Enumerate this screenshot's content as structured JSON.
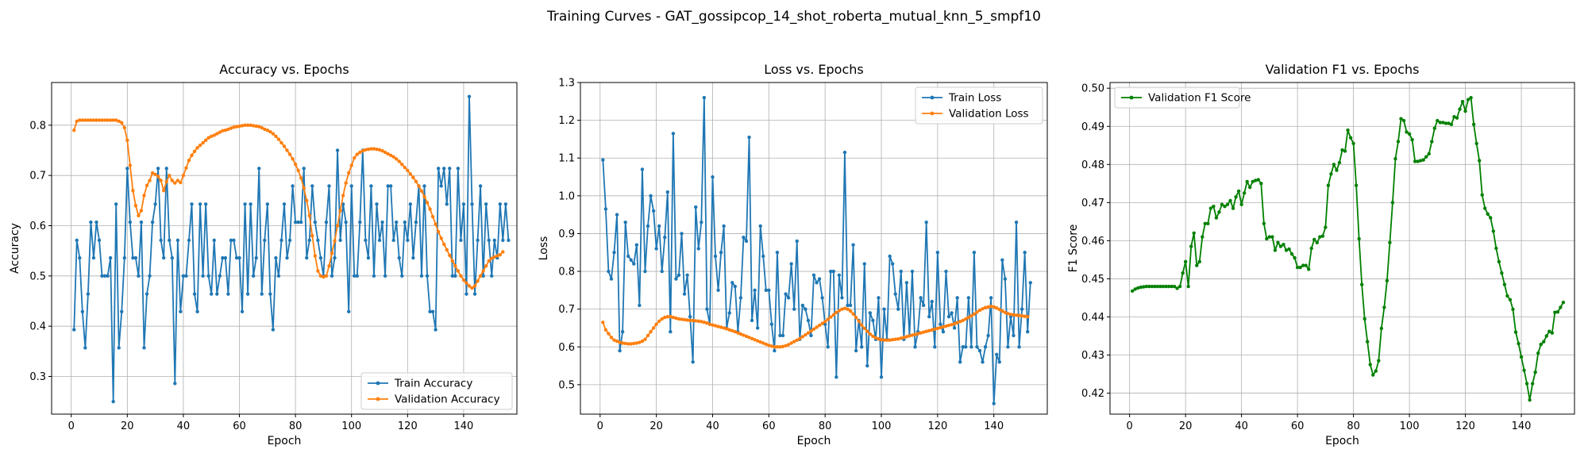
{
  "figure": {
    "suptitle": "Training Curves - GAT_gossipcop_14_shot_roberta_mutual_knn_5_smpf10"
  },
  "chart_data": [
    {
      "type": "line",
      "title": "Accuracy vs. Epochs",
      "xlabel": "Epoch",
      "ylabel": "Accuracy",
      "xlim": [
        -7,
        159
      ],
      "ylim": [
        0.225,
        0.885
      ],
      "xticks": [
        0,
        20,
        40,
        60,
        80,
        100,
        120,
        140
      ],
      "yticks": [
        0.3,
        0.4,
        0.5,
        0.6,
        0.7,
        0.8
      ],
      "tick_decimals": 1,
      "grid": true,
      "legend": "lower-right",
      "series": [
        {
          "name": "Train Accuracy",
          "color": "#1f77b4",
          "x_start": 1,
          "values": [
            0.393,
            0.571,
            0.536,
            0.429,
            0.357,
            0.464,
            0.607,
            0.536,
            0.607,
            0.571,
            0.5,
            0.5,
            0.5,
            0.536,
            0.25,
            0.643,
            0.357,
            0.429,
            0.536,
            0.714,
            0.607,
            0.536,
            0.536,
            0.5,
            0.607,
            0.357,
            0.464,
            0.5,
            0.607,
            0.643,
            0.714,
            0.571,
            0.536,
            0.714,
            0.571,
            0.536,
            0.286,
            0.571,
            0.429,
            0.5,
            0.5,
            0.571,
            0.643,
            0.464,
            0.429,
            0.643,
            0.5,
            0.643,
            0.5,
            0.464,
            0.571,
            0.464,
            0.5,
            0.536,
            0.536,
            0.464,
            0.571,
            0.571,
            0.536,
            0.536,
            0.429,
            0.643,
            0.464,
            0.643,
            0.5,
            0.536,
            0.714,
            0.464,
            0.571,
            0.643,
            0.464,
            0.393,
            0.536,
            0.5,
            0.571,
            0.643,
            0.536,
            0.571,
            0.679,
            0.607,
            0.607,
            0.607,
            0.714,
            0.536,
            0.571,
            0.679,
            0.607,
            0.571,
            0.536,
            0.5,
            0.607,
            0.679,
            0.5,
            0.536,
            0.75,
            0.571,
            0.643,
            0.607,
            0.429,
            0.679,
            0.5,
            0.5,
            0.607,
            0.75,
            0.571,
            0.536,
            0.679,
            0.5,
            0.643,
            0.571,
            0.607,
            0.5,
            0.679,
            0.679,
            0.571,
            0.607,
            0.536,
            0.5,
            0.607,
            0.571,
            0.643,
            0.536,
            0.607,
            0.679,
            0.5,
            0.679,
            0.5,
            0.429,
            0.429,
            0.393,
            0.714,
            0.679,
            0.714,
            0.643,
            0.714,
            0.5,
            0.5,
            0.714,
            0.571,
            0.643,
            0.464,
            0.857,
            0.643,
            0.464,
            0.571,
            0.679,
            0.5,
            0.643,
            0.571,
            0.5,
            0.571,
            0.536,
            0.643,
            0.571,
            0.643,
            0.571
          ]
        },
        {
          "name": "Validation Accuracy",
          "color": "#ff7f0e",
          "x_start": 1,
          "values": [
            0.79,
            0.808,
            0.81,
            0.81,
            0.81,
            0.81,
            0.81,
            0.81,
            0.81,
            0.81,
            0.81,
            0.81,
            0.81,
            0.81,
            0.81,
            0.81,
            0.808,
            0.805,
            0.795,
            0.77,
            0.72,
            0.67,
            0.64,
            0.62,
            0.63,
            0.66,
            0.68,
            0.69,
            0.705,
            0.702,
            0.698,
            0.69,
            0.67,
            0.688,
            0.7,
            0.69,
            0.685,
            0.69,
            0.686,
            0.7,
            0.715,
            0.73,
            0.74,
            0.748,
            0.755,
            0.76,
            0.765,
            0.77,
            0.775,
            0.778,
            0.78,
            0.783,
            0.786,
            0.789,
            0.79,
            0.792,
            0.794,
            0.796,
            0.797,
            0.798,
            0.799,
            0.8,
            0.8,
            0.8,
            0.799,
            0.798,
            0.797,
            0.795,
            0.792,
            0.79,
            0.787,
            0.783,
            0.778,
            0.772,
            0.765,
            0.758,
            0.75,
            0.742,
            0.733,
            0.722,
            0.71,
            0.695,
            0.675,
            0.65,
            0.62,
            0.58,
            0.54,
            0.51,
            0.5,
            0.498,
            0.5,
            0.52,
            0.545,
            0.57,
            0.6,
            0.63,
            0.66,
            0.685,
            0.705,
            0.72,
            0.735,
            0.742,
            0.746,
            0.749,
            0.751,
            0.752,
            0.753,
            0.753,
            0.752,
            0.751,
            0.749,
            0.746,
            0.743,
            0.74,
            0.737,
            0.733,
            0.728,
            0.722,
            0.716,
            0.71,
            0.703,
            0.696,
            0.688,
            0.679,
            0.669,
            0.658,
            0.646,
            0.633,
            0.618,
            0.603,
            0.588,
            0.575,
            0.563,
            0.552,
            0.541,
            0.53,
            0.52,
            0.51,
            0.5,
            0.492,
            0.486,
            0.48,
            0.476,
            0.48,
            0.49,
            0.5,
            0.51,
            0.52,
            0.53,
            0.535,
            0.538,
            0.54,
            0.542,
            0.548
          ]
        }
      ]
    },
    {
      "type": "line",
      "title": "Loss vs. Epochs",
      "xlabel": "Epoch",
      "ylabel": "Loss",
      "xlim": [
        -7,
        159
      ],
      "ylim": [
        0.422,
        1.3
      ],
      "xticks": [
        0,
        20,
        40,
        60,
        80,
        100,
        120,
        140
      ],
      "yticks": [
        0.5,
        0.6,
        0.7,
        0.8,
        0.9,
        1.0,
        1.1,
        1.2,
        1.3
      ],
      "tick_decimals": 1,
      "grid": true,
      "legend": "upper-right",
      "series": [
        {
          "name": "Train Loss",
          "color": "#1f77b4",
          "x_start": 1,
          "values": [
            1.095,
            0.965,
            0.8,
            0.78,
            0.85,
            0.95,
            0.59,
            0.64,
            0.93,
            0.84,
            0.83,
            0.82,
            0.87,
            0.71,
            1.07,
            0.8,
            0.92,
            1.0,
            0.96,
            0.86,
            0.92,
            0.8,
            0.89,
            1.01,
            0.64,
            1.165,
            0.78,
            0.79,
            0.9,
            0.74,
            0.79,
            0.68,
            0.56,
            0.97,
            0.86,
            0.93,
            1.26,
            0.7,
            0.66,
            1.05,
            0.84,
            0.75,
            0.85,
            0.92,
            0.65,
            0.69,
            0.77,
            0.76,
            0.64,
            0.73,
            0.89,
            0.88,
            1.155,
            0.67,
            0.75,
            0.65,
            0.92,
            0.84,
            0.75,
            0.75,
            0.66,
            0.59,
            0.85,
            0.63,
            0.63,
            0.74,
            0.73,
            0.82,
            0.7,
            0.88,
            0.62,
            0.71,
            0.7,
            0.67,
            0.63,
            0.79,
            0.77,
            0.78,
            0.73,
            0.66,
            0.6,
            0.8,
            0.8,
            0.52,
            0.79,
            0.73,
            1.115,
            0.71,
            0.71,
            0.87,
            0.59,
            0.67,
            0.6,
            0.82,
            0.55,
            0.69,
            0.67,
            0.62,
            0.73,
            0.52,
            0.7,
            0.62,
            0.84,
            0.82,
            0.74,
            0.7,
            0.8,
            0.62,
            0.77,
            0.63,
            0.8,
            0.6,
            0.64,
            0.73,
            0.71,
            0.93,
            0.68,
            0.72,
            0.6,
            0.85,
            0.66,
            0.64,
            0.8,
            0.68,
            0.69,
            0.65,
            0.73,
            0.56,
            0.6,
            0.6,
            0.73,
            0.6,
            0.85,
            0.6,
            0.59,
            0.56,
            0.6,
            0.63,
            0.73,
            0.45,
            0.58,
            0.56,
            0.83,
            0.78,
            0.6,
            0.68,
            0.63,
            0.93,
            0.6,
            0.7,
            0.85,
            0.64,
            0.77
          ]
        },
        {
          "name": "Validation Loss",
          "color": "#ff7f0e",
          "x_start": 1,
          "values": [
            0.665,
            0.645,
            0.635,
            0.625,
            0.618,
            0.615,
            0.612,
            0.61,
            0.609,
            0.608,
            0.608,
            0.609,
            0.61,
            0.612,
            0.615,
            0.62,
            0.63,
            0.64,
            0.65,
            0.66,
            0.668,
            0.674,
            0.678,
            0.68,
            0.68,
            0.678,
            0.676,
            0.674,
            0.673,
            0.672,
            0.671,
            0.67,
            0.67,
            0.669,
            0.668,
            0.667,
            0.665,
            0.663,
            0.66,
            0.658,
            0.656,
            0.654,
            0.652,
            0.65,
            0.648,
            0.645,
            0.643,
            0.64,
            0.637,
            0.634,
            0.631,
            0.628,
            0.625,
            0.622,
            0.619,
            0.616,
            0.613,
            0.61,
            0.607,
            0.604,
            0.602,
            0.6,
            0.6,
            0.6,
            0.601,
            0.603,
            0.606,
            0.61,
            0.614,
            0.618,
            0.622,
            0.627,
            0.632,
            0.637,
            0.642,
            0.647,
            0.652,
            0.657,
            0.662,
            0.667,
            0.673,
            0.679,
            0.685,
            0.691,
            0.696,
            0.7,
            0.702,
            0.7,
            0.695,
            0.687,
            0.678,
            0.668,
            0.658,
            0.649,
            0.641,
            0.634,
            0.628,
            0.624,
            0.621,
            0.619,
            0.618,
            0.618,
            0.618,
            0.619,
            0.62,
            0.621,
            0.623,
            0.625,
            0.627,
            0.629,
            0.631,
            0.633,
            0.635,
            0.637,
            0.639,
            0.641,
            0.643,
            0.645,
            0.647,
            0.649,
            0.651,
            0.653,
            0.655,
            0.657,
            0.659,
            0.661,
            0.664,
            0.667,
            0.67,
            0.674,
            0.678,
            0.682,
            0.687,
            0.692,
            0.697,
            0.701,
            0.704,
            0.706,
            0.707,
            0.706,
            0.703,
            0.699,
            0.695,
            0.691,
            0.688,
            0.686,
            0.685,
            0.684,
            0.683,
            0.682,
            0.681,
            0.68
          ]
        }
      ]
    },
    {
      "type": "line",
      "title": "Validation F1 vs. Epochs",
      "xlabel": "Epoch",
      "ylabel": "F1 Score",
      "xlim": [
        -7,
        159
      ],
      "ylim": [
        0.4145,
        0.5015
      ],
      "xticks": [
        0,
        20,
        40,
        60,
        80,
        100,
        120,
        140
      ],
      "yticks": [
        0.42,
        0.43,
        0.44,
        0.45,
        0.46,
        0.47,
        0.48,
        0.49,
        0.5
      ],
      "tick_decimals": 2,
      "grid": true,
      "legend": "upper-left",
      "series": [
        {
          "name": "Validation F1 Score",
          "color": "#008000",
          "x_start": 1,
          "values": [
            0.4468,
            0.4473,
            0.4476,
            0.4478,
            0.4479,
            0.448,
            0.448,
            0.448,
            0.448,
            0.448,
            0.448,
            0.448,
            0.448,
            0.448,
            0.448,
            0.448,
            0.4475,
            0.448,
            0.4515,
            0.4545,
            0.448,
            0.4585,
            0.462,
            0.4535,
            0.4545,
            0.461,
            0.4645,
            0.4645,
            0.4685,
            0.469,
            0.466,
            0.4675,
            0.4695,
            0.469,
            0.4695,
            0.4705,
            0.4685,
            0.4715,
            0.473,
            0.4695,
            0.4725,
            0.4755,
            0.474,
            0.4755,
            0.4758,
            0.476,
            0.475,
            0.4645,
            0.4605,
            0.461,
            0.461,
            0.4575,
            0.4595,
            0.4585,
            0.459,
            0.4575,
            0.4578,
            0.4565,
            0.4555,
            0.453,
            0.453,
            0.4535,
            0.4535,
            0.4525,
            0.458,
            0.4603,
            0.4595,
            0.461,
            0.4612,
            0.4635,
            0.4745,
            0.4775,
            0.48,
            0.4785,
            0.4805,
            0.4838,
            0.4835,
            0.489,
            0.487,
            0.4855,
            0.4745,
            0.4605,
            0.4485,
            0.4395,
            0.4335,
            0.4275,
            0.4248,
            0.4258,
            0.4285,
            0.437,
            0.4425,
            0.4495,
            0.4595,
            0.47,
            0.4815,
            0.486,
            0.492,
            0.4915,
            0.4885,
            0.488,
            0.4865,
            0.4808,
            0.4808,
            0.481,
            0.4812,
            0.482,
            0.4828,
            0.486,
            0.4895,
            0.4915,
            0.491,
            0.491,
            0.4908,
            0.4908,
            0.4905,
            0.4925,
            0.4922,
            0.4945,
            0.4965,
            0.494,
            0.497,
            0.4975,
            0.4905,
            0.4855,
            0.481,
            0.472,
            0.4685,
            0.467,
            0.466,
            0.4625,
            0.458,
            0.4545,
            0.4515,
            0.4485,
            0.4455,
            0.4445,
            0.442,
            0.436,
            0.433,
            0.4295,
            0.426,
            0.4225,
            0.4182,
            0.4225,
            0.4255,
            0.4305,
            0.4328,
            0.4335,
            0.435,
            0.4362,
            0.4358,
            0.4412,
            0.4413,
            0.4425,
            0.4438
          ]
        }
      ]
    }
  ]
}
